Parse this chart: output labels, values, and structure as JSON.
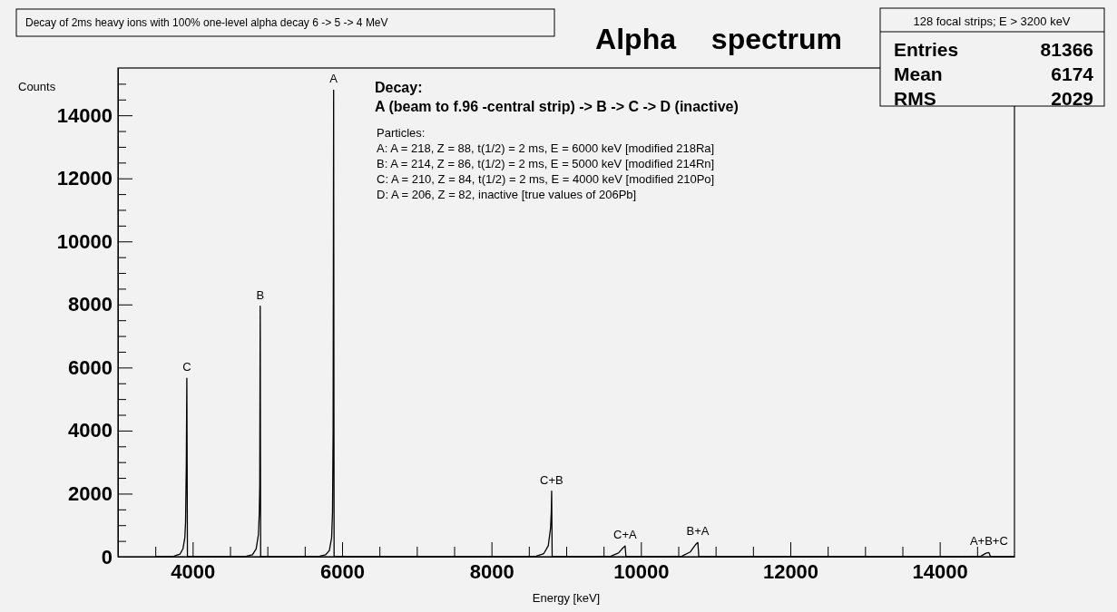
{
  "chart_data": {
    "type": "line",
    "title": "Decay of 2ms heavy ions with 100% one-level alpha decay 6 -> 5 -> 4 MeV",
    "subtitle": "Alpha spectrum",
    "xlabel": "Energy [keV]",
    "ylabel": "Counts",
    "x": [
      3500,
      3750,
      3830,
      3870,
      3895,
      3905,
      3915,
      3922,
      3930,
      4480,
      4720,
      4800,
      4850,
      4880,
      4892,
      4898,
      4904,
      4910,
      5450,
      5700,
      5780,
      5830,
      5860,
      5872,
      5880,
      5887,
      5893,
      8400,
      8600,
      8700,
      8760,
      8790,
      8800,
      8805,
      8812,
      9400,
      9600,
      9700,
      9760,
      9788,
      9800,
      10350,
      10550,
      10660,
      10730,
      10762,
      10775,
      14300,
      14550,
      14620,
      14658,
      14680,
      15000
    ],
    "series": [
      {
        "color": "#000000",
        "values": [
          0,
          20,
          80,
          250,
          600,
          1100,
          2950,
          5660,
          0,
          0,
          20,
          60,
          250,
          700,
          1400,
          2250,
          7950,
          0,
          0,
          20,
          60,
          200,
          600,
          1400,
          4010,
          14800,
          0,
          0,
          20,
          100,
          350,
          900,
          1400,
          2080,
          0,
          0,
          20,
          120,
          280,
          340,
          0,
          0,
          20,
          150,
          380,
          450,
          0,
          0,
          20,
          110,
          130,
          0,
          0
        ]
      }
    ],
    "xlim": [
      3000,
      15000
    ],
    "ylim": [
      0,
      15500
    ],
    "xticks": [
      {
        "value": 3500,
        "label": null
      },
      4000,
      {
        "value": 4500,
        "label": null
      },
      {
        "value": 5000,
        "label": null
      },
      {
        "value": 5500,
        "label": null
      },
      6000,
      {
        "value": 6500,
        "label": null
      },
      {
        "value": 7000,
        "label": null
      },
      {
        "value": 7500,
        "label": null
      },
      8000,
      {
        "value": 8500,
        "label": null
      },
      {
        "value": 9000,
        "label": null
      },
      {
        "value": 9500,
        "label": null
      },
      10000,
      {
        "value": 10500,
        "label": null
      },
      {
        "value": 11000,
        "label": null
      },
      {
        "value": 11500,
        "label": null
      },
      12000,
      {
        "value": 12500,
        "label": null
      },
      {
        "value": 13000,
        "label": null
      },
      {
        "value": 13500,
        "label": null
      },
      14000,
      {
        "value": 14500,
        "label": null
      }
    ],
    "yticks": [
      0,
      {
        "value": 500,
        "label": null
      },
      {
        "value": 1000,
        "label": null
      },
      {
        "value": 1500,
        "label": null
      },
      2000,
      {
        "value": 2500,
        "label": null
      },
      {
        "value": 3000,
        "label": null
      },
      {
        "value": 3500,
        "label": null
      },
      4000,
      {
        "value": 4500,
        "label": null
      },
      {
        "value": 5000,
        "label": null
      },
      {
        "value": 5500,
        "label": null
      },
      6000,
      {
        "value": 6500,
        "label": null
      },
      {
        "value": 7000,
        "label": null
      },
      {
        "value": 7500,
        "label": null
      },
      8000,
      {
        "value": 8500,
        "label": null
      },
      {
        "value": 9000,
        "label": null
      },
      {
        "value": 9500,
        "label": null
      },
      10000,
      {
        "value": 10500,
        "label": null
      },
      {
        "value": 11000,
        "label": null
      },
      {
        "value": 11500,
        "label": null
      },
      12000,
      {
        "value": 12500,
        "label": null
      },
      {
        "value": 13000,
        "label": null
      },
      {
        "value": 13500,
        "label": null
      },
      14000,
      {
        "value": 14500,
        "label": null
      },
      {
        "value": 15000,
        "label": null
      }
    ],
    "annotations": [
      "Decay:",
      "A (beam to f.96 -central strip) -> B -> C -> D (inactive)",
      "Particles:",
      "A: A = 218, Z = 88, t(1/2) = 2 ms, E = 6000 keV [modified 218Ra]",
      "B: A = 214, Z = 86, t(1/2) = 2 ms, E = 5000 keV [modified 214Rn]",
      "C: A = 210, Z = 84, t(1/2) = 2 ms, E = 4000 keV [modified 210Po]",
      "D: A = 206, Z = 82, inactive [true values of 206Pb]",
      "128 focal strips; E > 3200 keV",
      "Entries 81366",
      "Mean 6174",
      "RMS 2029",
      {
        "text": "C",
        "x": 3922,
        "y": 5660
      },
      {
        "text": "B",
        "x": 4904,
        "y": 7950
      },
      {
        "text": "A",
        "x": 5887,
        "y": 14800
      },
      {
        "text": "C+B",
        "x": 8805,
        "y": 2080
      },
      {
        "text": "C+A",
        "x": 9788,
        "y": 340
      },
      {
        "text": "B+A",
        "x": 10762,
        "y": 450
      },
      {
        "text": "A+B+C",
        "x": 14658,
        "y": 130
      }
    ]
  }
}
